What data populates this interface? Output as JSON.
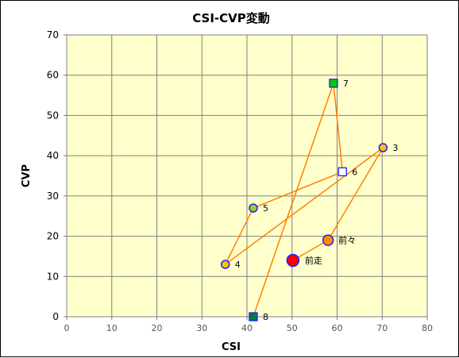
{
  "chart_data": {
    "type": "scatter",
    "title": "CSI-CVP変動",
    "xlabel": "CSI",
    "ylabel": "CVP",
    "xlim": [
      0,
      80
    ],
    "ylim": [
      0,
      70
    ],
    "x_ticks": [
      "0",
      "10",
      "20",
      "30",
      "40",
      "50",
      "60",
      "70",
      "80"
    ],
    "y_ticks": [
      "0",
      "10",
      "20",
      "30",
      "40",
      "50",
      "60",
      "70"
    ],
    "grid": true,
    "legend": "none",
    "colors": {
      "plot_background": "#ffffcc",
      "grid": "#808080",
      "line": "#ff8000"
    },
    "path_order": [
      "前走",
      "前々",
      "3",
      "4",
      "5",
      "6",
      "7",
      "8"
    ],
    "points": [
      {
        "label": "前走",
        "x": 50.2,
        "y": 14,
        "marker": "circle-large",
        "fill": "#ff0000",
        "stroke": "#1f1fff"
      },
      {
        "label": "前々",
        "x": 58,
        "y": 19,
        "marker": "circle-medium",
        "fill": "#ff8c00",
        "stroke": "#1f1fff"
      },
      {
        "label": "3",
        "x": 70.2,
        "y": 42,
        "marker": "circle",
        "fill": "#ffc000",
        "stroke": "#1f1fff"
      },
      {
        "label": "4",
        "x": 35.2,
        "y": 13,
        "marker": "circle",
        "fill": "#ffc000",
        "stroke": "#1f1fff"
      },
      {
        "label": "5",
        "x": 41.4,
        "y": 27,
        "marker": "circle",
        "fill": "#9acd32",
        "stroke": "#1f1fff"
      },
      {
        "label": "6",
        "x": 61.2,
        "y": 36,
        "marker": "square",
        "fill": "#ffffff",
        "stroke": "#1f1fff"
      },
      {
        "label": "7",
        "x": 59.2,
        "y": 58,
        "marker": "square",
        "fill": "#00cc00",
        "stroke": "#1f1fff"
      },
      {
        "label": "8",
        "x": 41.4,
        "y": 0,
        "marker": "square",
        "fill": "#007a3d",
        "stroke": "#1f1fff"
      }
    ]
  }
}
